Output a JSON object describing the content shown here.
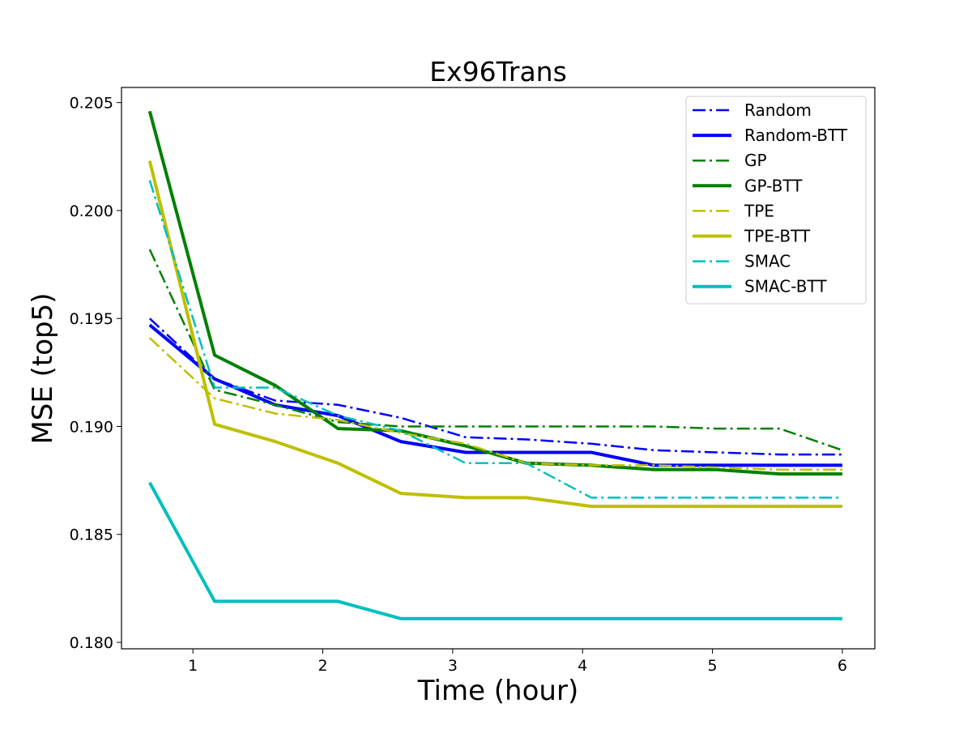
{
  "chart_data": {
    "type": "line",
    "title": "Ex96Trans",
    "xlabel": "Time (hour)",
    "ylabel": "MSE  (top5)",
    "xlim": [
      0.45,
      6.25
    ],
    "ylim": [
      0.1797,
      0.2057
    ],
    "xticks": [
      1,
      2,
      3,
      4,
      5,
      6
    ],
    "yticks": [
      0.18,
      0.185,
      0.19,
      0.195,
      0.2,
      0.205
    ],
    "ytick_labels": [
      "0.180",
      "0.185",
      "0.190",
      "0.195",
      "0.200",
      "0.205"
    ],
    "grid": false,
    "legend_position": "top-right",
    "x": [
      0.667,
      1.167,
      1.633,
      2.117,
      2.6,
      3.1,
      3.567,
      4.067,
      4.55,
      5.033,
      5.517,
      6.0
    ],
    "series": [
      {
        "name": "Random",
        "color": "#0000ff",
        "style": "dashdot",
        "width": 2.5,
        "values": [
          0.195,
          0.1922,
          0.1912,
          0.191,
          0.1904,
          0.1895,
          0.1894,
          0.1892,
          0.1889,
          0.1888,
          0.1887,
          0.1887
        ]
      },
      {
        "name": "Random-BTT",
        "color": "#0000ff",
        "style": "solid",
        "width": 4,
        "values": [
          0.1947,
          0.1922,
          0.191,
          0.1905,
          0.1893,
          0.1888,
          0.1888,
          0.1888,
          0.1882,
          0.1882,
          0.1882,
          0.1882
        ]
      },
      {
        "name": "GP",
        "color": "#008000",
        "style": "dashdot",
        "width": 2.5,
        "values": [
          0.1982,
          0.1917,
          0.191,
          0.1902,
          0.19,
          0.19,
          0.19,
          0.19,
          0.19,
          0.1899,
          0.1899,
          0.1889
        ]
      },
      {
        "name": "GP-BTT",
        "color": "#008000",
        "style": "solid",
        "width": 4,
        "values": [
          0.2046,
          0.1933,
          0.1919,
          0.1899,
          0.1898,
          0.1891,
          0.1883,
          0.1882,
          0.188,
          0.188,
          0.1878,
          0.1878
        ]
      },
      {
        "name": "TPE",
        "color": "#bfbf00",
        "style": "dashdot",
        "width": 2.5,
        "values": [
          0.1941,
          0.1913,
          0.1906,
          0.1903,
          0.1897,
          0.1892,
          0.1883,
          0.1882,
          0.1882,
          0.1881,
          0.188,
          0.188
        ]
      },
      {
        "name": "TPE-BTT",
        "color": "#bfbf00",
        "style": "solid",
        "width": 4,
        "values": [
          0.2023,
          0.1901,
          0.1893,
          0.1883,
          0.1869,
          0.1867,
          0.1867,
          0.1863,
          0.1863,
          0.1863,
          0.1863,
          0.1863
        ]
      },
      {
        "name": "SMAC",
        "color": "#00bfbf",
        "style": "dashdot",
        "width": 2.5,
        "values": [
          0.2014,
          0.1918,
          0.1918,
          0.1905,
          0.1898,
          0.1883,
          0.1883,
          0.1867,
          0.1867,
          0.1867,
          0.1867,
          0.1867
        ]
      },
      {
        "name": "SMAC-BTT",
        "color": "#00bfbf",
        "style": "solid",
        "width": 4,
        "values": [
          0.1874,
          0.1819,
          0.1819,
          0.1819,
          0.1811,
          0.1811,
          0.1811,
          0.1811,
          0.1811,
          0.1811,
          0.1811,
          0.1811
        ]
      }
    ]
  }
}
